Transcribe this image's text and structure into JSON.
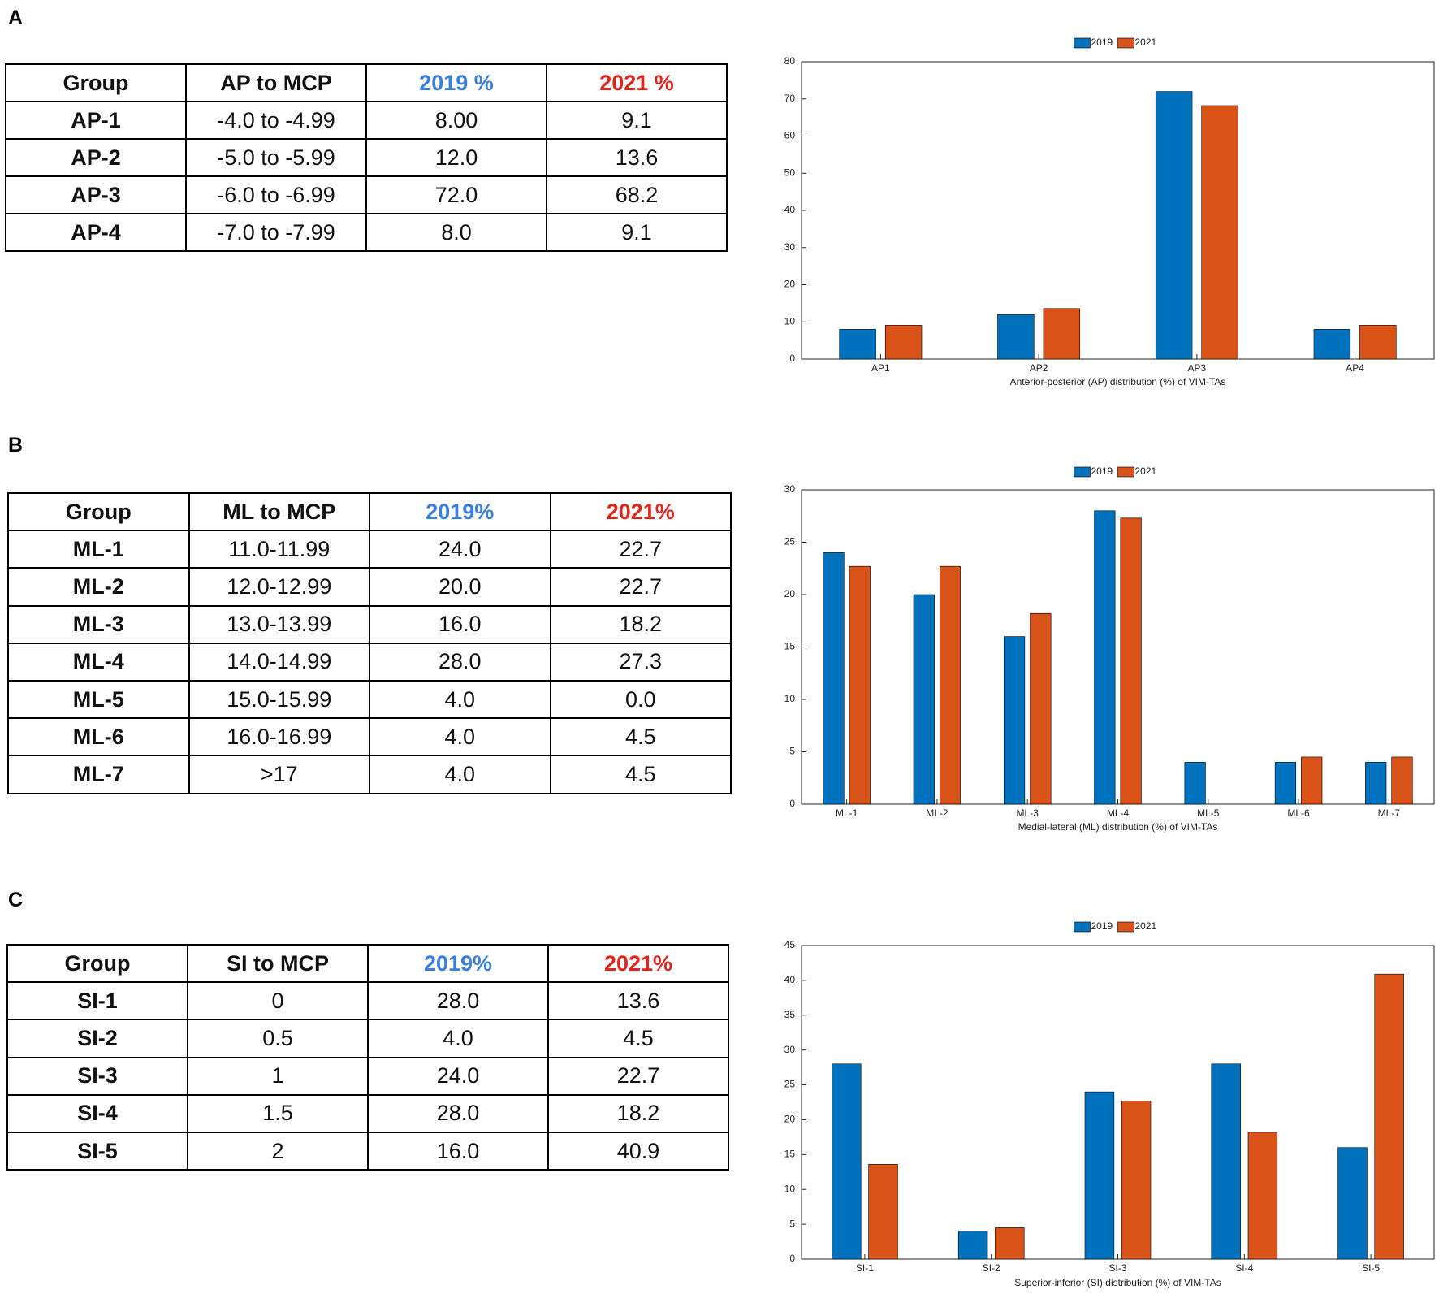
{
  "panels": [
    {
      "label": "A",
      "table": {
        "header": [
          "Group",
          "AP to MCP",
          "2019 %",
          "2021 %"
        ],
        "rows": [
          [
            "AP-1",
            "-4.0 to -4.99",
            "8.00",
            "9.1"
          ],
          [
            "AP-2",
            "-5.0 to -5.99",
            "12.0",
            "13.6"
          ],
          [
            "AP-3",
            "-6.0 to -6.99",
            "72.0",
            "68.2"
          ],
          [
            "AP-4",
            "-7.0 to -7.99",
            "8.0",
            "9.1"
          ]
        ]
      }
    },
    {
      "label": "B",
      "table": {
        "header": [
          "Group",
          "ML to MCP",
          "2019%",
          "2021%"
        ],
        "rows": [
          [
            "ML-1",
            "11.0-11.99",
            "24.0",
            "22.7"
          ],
          [
            "ML-2",
            "12.0-12.99",
            "20.0",
            "22.7"
          ],
          [
            "ML-3",
            "13.0-13.99",
            "16.0",
            "18.2"
          ],
          [
            "ML-4",
            "14.0-14.99",
            "28.0",
            "27.3"
          ],
          [
            "ML-5",
            "15.0-15.99",
            "4.0",
            "0.0"
          ],
          [
            "ML-6",
            "16.0-16.99",
            "4.0",
            "4.5"
          ],
          [
            "ML-7",
            ">17",
            "4.0",
            "4.5"
          ]
        ]
      }
    },
    {
      "label": "C",
      "table": {
        "header": [
          "Group",
          "SI to MCP",
          "2019%",
          "2021%"
        ],
        "rows": [
          [
            "SI-1",
            "0",
            "28.0",
            "13.6"
          ],
          [
            "SI-2",
            "0.5",
            "4.0",
            "4.5"
          ],
          [
            "SI-3",
            "1",
            "24.0",
            "22.7"
          ],
          [
            "SI-4",
            "1.5",
            "28.0",
            "18.2"
          ],
          [
            "SI-5",
            "2",
            "16.0",
            "40.9"
          ]
        ]
      }
    }
  ],
  "chart_data": [
    {
      "type": "bar",
      "x_label": "Anterior-posterior (AP) distribution (%) of VIM-TAs",
      "categories": [
        "AP1",
        "AP2",
        "AP3",
        "AP4"
      ],
      "series": [
        {
          "name": "2019",
          "color": "#0072bd",
          "values": [
            8,
            12,
            72,
            8
          ]
        },
        {
          "name": "2021",
          "color": "#d95319",
          "values": [
            9.1,
            13.6,
            68.2,
            9.1
          ]
        }
      ],
      "ylim": [
        0,
        80
      ],
      "yticks": [
        0,
        10,
        20,
        30,
        40,
        50,
        60,
        70,
        80
      ],
      "legend": "top"
    },
    {
      "type": "bar",
      "x_label": "Medial-lateral (ML) distribution (%) of VIM-TAs",
      "categories": [
        "ML-1",
        "ML-2",
        "ML-3",
        "ML-4",
        "ML-5",
        "ML-6",
        "ML-7"
      ],
      "series": [
        {
          "name": "2019",
          "color": "#0072bd",
          "values": [
            24,
            20,
            16,
            28,
            4,
            4,
            4
          ]
        },
        {
          "name": "2021",
          "color": "#d95319",
          "values": [
            22.7,
            22.7,
            18.2,
            27.3,
            0,
            4.5,
            4.5
          ]
        }
      ],
      "ylim": [
        0,
        30
      ],
      "yticks": [
        0,
        5,
        10,
        15,
        20,
        25,
        30
      ],
      "legend": "top"
    },
    {
      "type": "bar",
      "x_label": "Superior-inferior (SI) distribution (%) of VIM-TAs",
      "categories": [
        "SI-1",
        "SI-2",
        "SI-3",
        "SI-4",
        "SI-5"
      ],
      "series": [
        {
          "name": "2019",
          "color": "#0072bd",
          "values": [
            28,
            4,
            24,
            28,
            16
          ]
        },
        {
          "name": "2021",
          "color": "#d95319",
          "values": [
            13.6,
            4.5,
            22.7,
            18.2,
            40.9
          ]
        }
      ],
      "ylim": [
        0,
        45
      ],
      "yticks": [
        0,
        5,
        10,
        15,
        20,
        25,
        30,
        35,
        40,
        45
      ],
      "legend": "top"
    }
  ]
}
